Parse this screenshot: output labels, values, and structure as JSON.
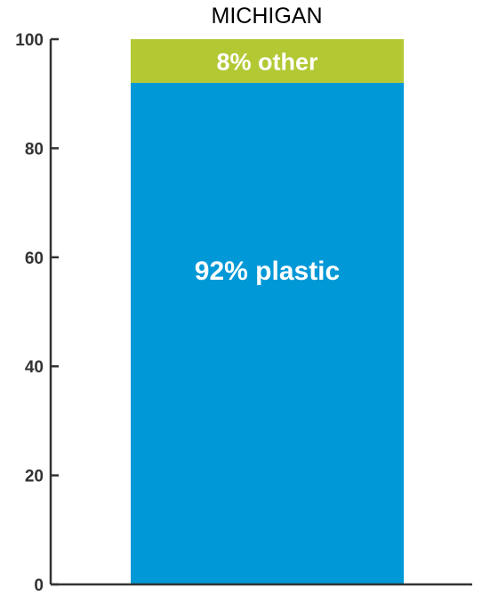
{
  "chart_data": {
    "type": "bar",
    "stacked": true,
    "title": "MICHIGAN",
    "xlabel": "",
    "ylabel": "",
    "ylim": [
      0,
      100
    ],
    "yticks": [
      0,
      20,
      40,
      60,
      80,
      100
    ],
    "grid": false,
    "legend": "none",
    "segments": [
      {
        "label": "92% plastic",
        "value": 92,
        "color": "#0098d6"
      },
      {
        "label": "8% other",
        "value": 8,
        "color": "#b3c833"
      }
    ]
  }
}
